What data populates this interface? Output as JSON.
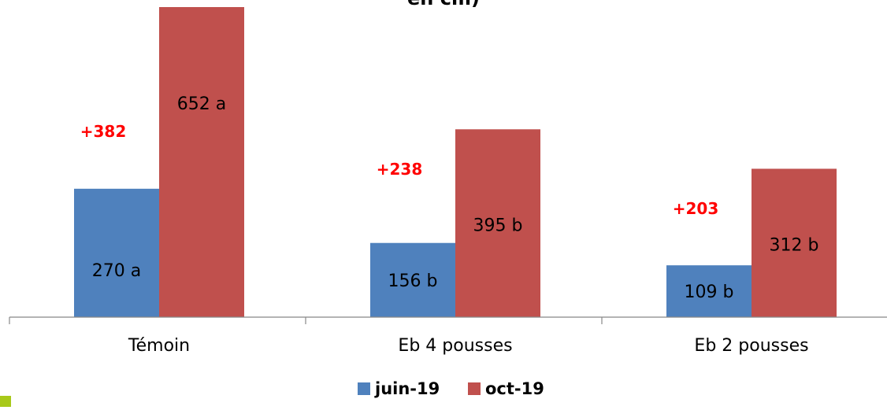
{
  "chart_data": {
    "type": "bar",
    "title": "en cm)",
    "categories": [
      "Témoin",
      "Eb 4 pousses",
      "Eb 2 pousses"
    ],
    "series": [
      {
        "name": "juin-19",
        "color": "#4f81bd",
        "values": [
          270,
          156,
          109
        ],
        "labels": [
          "270 a",
          "156 b",
          "109 b"
        ]
      },
      {
        "name": "oct-19",
        "color": "#c0504d",
        "values": [
          652,
          395,
          312
        ],
        "labels": [
          "652 a",
          "395 b",
          "312 b"
        ]
      }
    ],
    "annotations": [
      "+382",
      "+238",
      "+203"
    ],
    "annotation_color": "#ff0000",
    "ylim": [
      0,
      700
    ],
    "grid": false,
    "legend_position": "bottom"
  }
}
